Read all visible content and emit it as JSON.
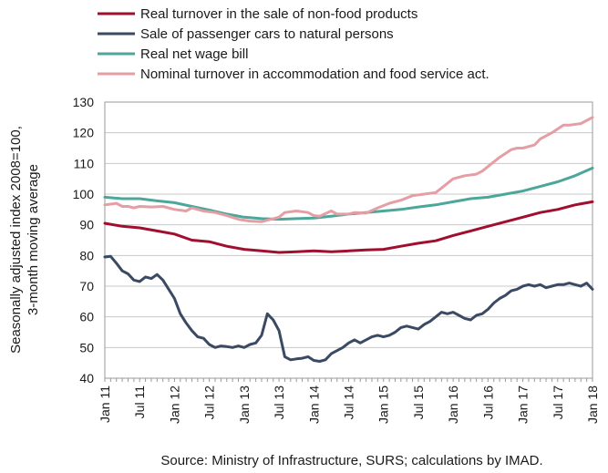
{
  "chart_data": {
    "type": "line",
    "ylabel_lines": [
      "Seasonally adjusted index 2008=100,",
      "3-month moving average"
    ],
    "ylim": [
      40,
      130
    ],
    "yticks": [
      40,
      50,
      60,
      70,
      80,
      90,
      100,
      110,
      120,
      130
    ],
    "xlim": [
      0,
      84
    ],
    "xticks": [
      {
        "pos": 0,
        "label": "Jan 11"
      },
      {
        "pos": 6,
        "label": "Jul 11"
      },
      {
        "pos": 12,
        "label": "Jan 12"
      },
      {
        "pos": 18,
        "label": "Jul 12"
      },
      {
        "pos": 24,
        "label": "Jan 13"
      },
      {
        "pos": 30,
        "label": "Jul 13"
      },
      {
        "pos": 36,
        "label": "Jan 14"
      },
      {
        "pos": 42,
        "label": "Jul 14"
      },
      {
        "pos": 48,
        "label": "Jan 15"
      },
      {
        "pos": 54,
        "label": "Jul 15"
      },
      {
        "pos": 60,
        "label": "Jan 16"
      },
      {
        "pos": 66,
        "label": "Jul 16"
      },
      {
        "pos": 72,
        "label": "Jan 17"
      },
      {
        "pos": 78,
        "label": "Jul 17"
      },
      {
        "pos": 84,
        "label": "Jan 18"
      }
    ],
    "grid": "horizontal",
    "legend_position": "top",
    "series": [
      {
        "name": "Real turnover in the sale of non-food products",
        "color": "#a0102e",
        "points": [
          [
            0,
            90.5
          ],
          [
            3,
            89.5
          ],
          [
            6,
            89
          ],
          [
            9,
            88
          ],
          [
            12,
            87
          ],
          [
            15,
            85
          ],
          [
            18,
            84.5
          ],
          [
            21,
            83
          ],
          [
            24,
            82
          ],
          [
            27,
            81.5
          ],
          [
            30,
            81
          ],
          [
            33,
            81.2
          ],
          [
            36,
            81.5
          ],
          [
            39,
            81.2
          ],
          [
            42,
            81.5
          ],
          [
            45,
            81.8
          ],
          [
            48,
            82
          ],
          [
            51,
            83
          ],
          [
            54,
            84
          ],
          [
            57,
            84.8
          ],
          [
            60,
            86.5
          ],
          [
            63,
            88
          ],
          [
            66,
            89.5
          ],
          [
            69,
            91
          ],
          [
            72,
            92.5
          ],
          [
            75,
            94
          ],
          [
            78,
            95
          ],
          [
            81,
            96.5
          ],
          [
            84,
            97.5
          ]
        ]
      },
      {
        "name": "Sale of passenger cars to natural persons",
        "color": "#3b4a63",
        "points": [
          [
            0,
            79.5
          ],
          [
            1,
            79.7
          ],
          [
            2,
            77.5
          ],
          [
            3,
            75
          ],
          [
            4,
            74
          ],
          [
            5,
            72
          ],
          [
            6,
            71.5
          ],
          [
            7,
            73
          ],
          [
            8,
            72.5
          ],
          [
            9,
            73.8
          ],
          [
            10,
            72
          ],
          [
            11,
            69
          ],
          [
            12,
            66
          ],
          [
            13,
            61
          ],
          [
            14,
            58
          ],
          [
            15,
            55.5
          ],
          [
            16,
            53.5
          ],
          [
            17,
            53
          ],
          [
            18,
            51
          ],
          [
            19,
            50
          ],
          [
            20,
            50.5
          ],
          [
            21,
            50.3
          ],
          [
            22,
            50
          ],
          [
            23,
            50.5
          ],
          [
            24,
            50
          ],
          [
            25,
            51
          ],
          [
            26,
            51.5
          ],
          [
            27,
            54
          ],
          [
            28,
            61
          ],
          [
            29,
            59
          ],
          [
            30,
            55.5
          ],
          [
            31,
            47
          ],
          [
            32,
            46
          ],
          [
            33,
            46.3
          ],
          [
            34,
            46.5
          ],
          [
            35,
            47
          ],
          [
            36,
            45.8
          ],
          [
            37,
            45.5
          ],
          [
            38,
            46
          ],
          [
            39,
            48
          ],
          [
            40,
            49
          ],
          [
            41,
            50
          ],
          [
            42,
            51.5
          ],
          [
            43,
            52.5
          ],
          [
            44,
            51.5
          ],
          [
            45,
            52.5
          ],
          [
            46,
            53.5
          ],
          [
            47,
            54
          ],
          [
            48,
            53.5
          ],
          [
            49,
            54
          ],
          [
            50,
            55
          ],
          [
            51,
            56.5
          ],
          [
            52,
            57
          ],
          [
            53,
            56.5
          ],
          [
            54,
            56
          ],
          [
            55,
            57.5
          ],
          [
            56,
            58.5
          ],
          [
            57,
            60
          ],
          [
            58,
            61.5
          ],
          [
            59,
            61
          ],
          [
            60,
            61.5
          ],
          [
            61,
            60.5
          ],
          [
            62,
            59.5
          ],
          [
            63,
            59
          ],
          [
            64,
            60.5
          ],
          [
            65,
            61
          ],
          [
            66,
            62.5
          ],
          [
            67,
            64.5
          ],
          [
            68,
            66
          ],
          [
            69,
            67
          ],
          [
            70,
            68.5
          ],
          [
            71,
            69
          ],
          [
            72,
            70
          ],
          [
            73,
            70.5
          ],
          [
            74,
            70
          ],
          [
            75,
            70.5
          ],
          [
            76,
            69.5
          ],
          [
            77,
            70
          ],
          [
            78,
            70.5
          ],
          [
            79,
            70.5
          ],
          [
            80,
            71
          ],
          [
            81,
            70.5
          ],
          [
            82,
            70
          ],
          [
            83,
            71
          ],
          [
            84,
            69
          ]
        ]
      },
      {
        "name": "Real net wage bill",
        "color": "#4ca79a",
        "points": [
          [
            0,
            99
          ],
          [
            3,
            98.5
          ],
          [
            6,
            98.5
          ],
          [
            9,
            97.8
          ],
          [
            12,
            97.2
          ],
          [
            15,
            96
          ],
          [
            18,
            94.8
          ],
          [
            21,
            93.5
          ],
          [
            24,
            92.5
          ],
          [
            27,
            92
          ],
          [
            30,
            91.8
          ],
          [
            33,
            92
          ],
          [
            36,
            92.2
          ],
          [
            39,
            92.8
          ],
          [
            42,
            93.5
          ],
          [
            45,
            94
          ],
          [
            48,
            94.5
          ],
          [
            51,
            95
          ],
          [
            54,
            95.8
          ],
          [
            57,
            96.5
          ],
          [
            60,
            97.5
          ],
          [
            63,
            98.5
          ],
          [
            66,
            99
          ],
          [
            69,
            100
          ],
          [
            72,
            101
          ],
          [
            75,
            102.5
          ],
          [
            78,
            104
          ],
          [
            81,
            106
          ],
          [
            84,
            108.5
          ]
        ]
      },
      {
        "name": "Nominal turnover in accommodation and food service act.",
        "color": "#e49ea4",
        "points": [
          [
            0,
            96.5
          ],
          [
            2,
            97
          ],
          [
            3,
            96
          ],
          [
            4,
            96
          ],
          [
            5,
            95.5
          ],
          [
            6,
            96
          ],
          [
            8,
            95.8
          ],
          [
            10,
            96
          ],
          [
            12,
            95
          ],
          [
            14,
            94.5
          ],
          [
            15,
            95.5
          ],
          [
            17,
            94.5
          ],
          [
            19,
            94
          ],
          [
            21,
            93
          ],
          [
            23,
            91.8
          ],
          [
            25,
            91.2
          ],
          [
            27,
            91
          ],
          [
            28,
            91.5
          ],
          [
            30,
            92.5
          ],
          [
            31,
            94
          ],
          [
            33,
            94.5
          ],
          [
            35,
            94
          ],
          [
            36,
            93
          ],
          [
            37,
            92.8
          ],
          [
            39,
            94.5
          ],
          [
            40,
            93.5
          ],
          [
            42,
            93.5
          ],
          [
            43,
            94
          ],
          [
            45,
            93.8
          ],
          [
            47,
            95.5
          ],
          [
            49,
            97
          ],
          [
            51,
            98
          ],
          [
            53,
            99.5
          ],
          [
            55,
            100
          ],
          [
            57,
            100.5
          ],
          [
            58,
            102
          ],
          [
            60,
            105
          ],
          [
            62,
            106
          ],
          [
            64,
            106.5
          ],
          [
            65,
            107.5
          ],
          [
            66,
            109
          ],
          [
            68,
            112
          ],
          [
            70,
            114.5
          ],
          [
            71,
            115
          ],
          [
            72,
            115
          ],
          [
            73,
            115.5
          ],
          [
            74,
            116
          ],
          [
            75,
            118
          ],
          [
            77,
            120
          ],
          [
            79,
            122.5
          ],
          [
            80,
            122.5
          ],
          [
            82,
            123
          ],
          [
            83,
            124
          ],
          [
            84,
            125
          ]
        ]
      }
    ]
  },
  "source": "Source: Ministry of Infrastructure, SURS; calculations by IMAD."
}
